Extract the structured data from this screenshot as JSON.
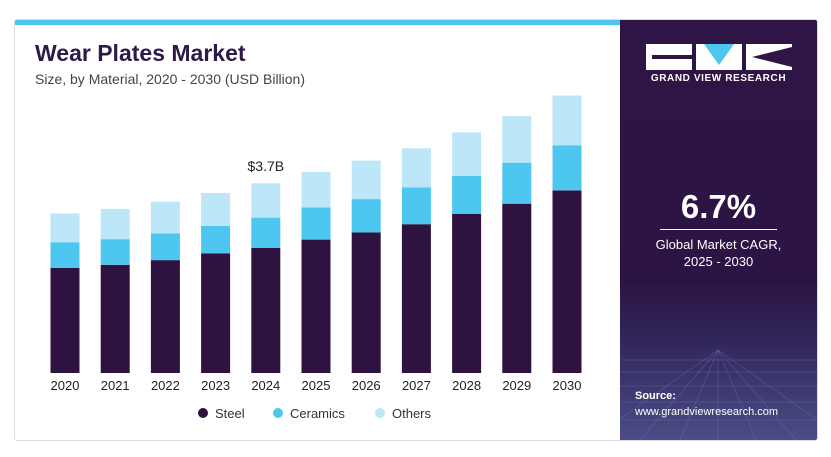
{
  "header": {
    "title": "Wear Plates Market",
    "subtitle": "Size, by Material, 2020 - 2030 (USD Billion)"
  },
  "colors": {
    "accent": "#4dc7ef",
    "steel": "#2e1341",
    "ceramics": "#4dc7ef",
    "others": "#bde7f8",
    "panel": "#2f1546"
  },
  "chart_data": {
    "type": "bar",
    "stacked": true,
    "categories": [
      "2020",
      "2021",
      "2022",
      "2023",
      "2024",
      "2025",
      "2026",
      "2027",
      "2028",
      "2029",
      "2030"
    ],
    "series": [
      {
        "name": "Steel",
        "values": [
          2.05,
          2.11,
          2.2,
          2.33,
          2.44,
          2.6,
          2.74,
          2.9,
          3.1,
          3.3,
          3.56
        ]
      },
      {
        "name": "Ceramics",
        "values": [
          0.5,
          0.5,
          0.52,
          0.54,
          0.59,
          0.63,
          0.65,
          0.72,
          0.74,
          0.8,
          0.88
        ]
      },
      {
        "name": "Others",
        "values": [
          0.56,
          0.59,
          0.62,
          0.64,
          0.67,
          0.69,
          0.75,
          0.76,
          0.85,
          0.91,
          0.97
        ]
      }
    ],
    "annotations": [
      {
        "category": "2024",
        "text": "$3.7B"
      }
    ],
    "ylim": [
      0,
      5.4
    ],
    "grid": false,
    "legend_position": "bottom"
  },
  "legend": {
    "items": [
      {
        "label": "Steel"
      },
      {
        "label": "Ceramics"
      },
      {
        "label": "Others"
      }
    ]
  },
  "sidebar": {
    "brand": "GRAND VIEW RESEARCH",
    "logo_icon": "grand-view-research-logo",
    "cagr_value": "6.7%",
    "cagr_label_line1": "Global Market CAGR,",
    "cagr_label_line2": "2025 - 2030",
    "source_heading": "Source:",
    "source_url": "www.grandviewresearch.com"
  }
}
